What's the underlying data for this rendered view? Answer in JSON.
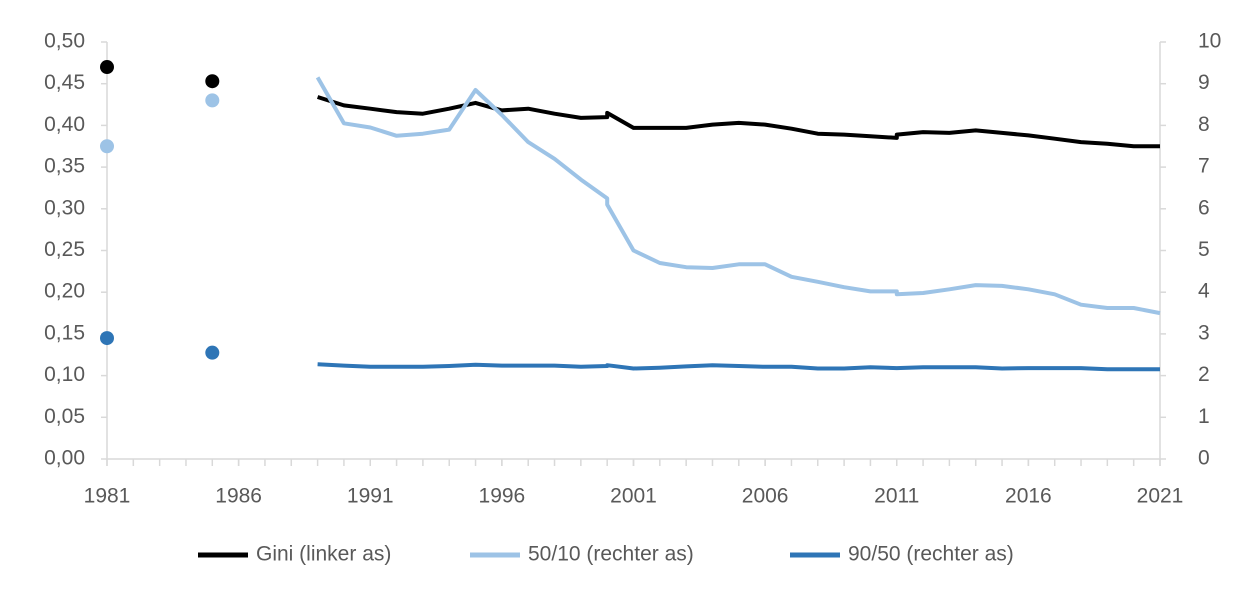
{
  "chart_data": {
    "type": "line",
    "x": [
      1981,
      1985,
      1989,
      1990,
      1991,
      1992,
      1993,
      1994,
      1995,
      1996,
      1997,
      1998,
      1999,
      2000,
      2000,
      2001,
      2002,
      2003,
      2004,
      2005,
      2006,
      2007,
      2008,
      2009,
      2010,
      2011,
      2011,
      2012,
      2013,
      2014,
      2015,
      2016,
      2017,
      2018,
      2019,
      2020,
      2021
    ],
    "series": [
      {
        "name": "Gini (linker as)",
        "color": "#000000",
        "axis": "y",
        "values": [
          0.47,
          0.453,
          0.434,
          0.424,
          0.42,
          0.416,
          0.414,
          0.42,
          0.427,
          0.418,
          0.42,
          0.414,
          0.409,
          0.41,
          0.415,
          0.397,
          0.397,
          0.397,
          0.401,
          0.403,
          0.401,
          0.396,
          0.39,
          0.389,
          0.387,
          0.385,
          0.389,
          0.392,
          0.391,
          0.394,
          0.391,
          0.388,
          0.384,
          0.38,
          0.378,
          0.375,
          0.375
        ]
      },
      {
        "name": "50/10 (rechter as)",
        "color": "#9dc3e6",
        "axis": "y2",
        "values": [
          7.5,
          8.6,
          9.15,
          8.05,
          7.95,
          7.75,
          7.8,
          7.9,
          8.85,
          8.25,
          7.6,
          7.2,
          6.7,
          6.25,
          6.1,
          5.0,
          4.7,
          4.6,
          4.58,
          4.67,
          4.67,
          4.37,
          4.25,
          4.12,
          4.02,
          4.02,
          3.95,
          3.98,
          4.07,
          4.17,
          4.15,
          4.07,
          3.95,
          3.7,
          3.62,
          3.62,
          3.5
        ]
      },
      {
        "name": "90/50 (rechter as)",
        "color": "#2e75b6",
        "axis": "y2",
        "values": [
          2.9,
          2.55,
          2.27,
          2.24,
          2.21,
          2.21,
          2.21,
          2.23,
          2.26,
          2.24,
          2.24,
          2.24,
          2.21,
          2.23,
          2.25,
          2.17,
          2.19,
          2.22,
          2.25,
          2.23,
          2.21,
          2.21,
          2.17,
          2.17,
          2.2,
          2.18,
          2.18,
          2.2,
          2.2,
          2.2,
          2.17,
          2.18,
          2.18,
          2.18,
          2.15,
          2.15,
          2.15
        ]
      }
    ],
    "xlim": [
      1981,
      2021
    ],
    "xticks": [
      1981,
      1986,
      1991,
      1996,
      2001,
      2006,
      2011,
      2016,
      2021
    ],
    "ylim": [
      0,
      0.5
    ],
    "yticks": [
      {
        "value": 0,
        "label": "0,00"
      },
      {
        "value": 0.05,
        "label": "0,05"
      },
      {
        "value": 0.1,
        "label": "0,10"
      },
      {
        "value": 0.15,
        "label": "0,15"
      },
      {
        "value": 0.2,
        "label": "0,20"
      },
      {
        "value": 0.25,
        "label": "0,25"
      },
      {
        "value": 0.3,
        "label": "0,30"
      },
      {
        "value": 0.35,
        "label": "0,35"
      },
      {
        "value": 0.4,
        "label": "0,40"
      },
      {
        "value": 0.45,
        "label": "0,45"
      },
      {
        "value": 0.5,
        "label": "0,50"
      }
    ],
    "y2lim": [
      0,
      10
    ],
    "y2ticks": [
      0,
      1,
      2,
      3,
      4,
      5,
      6,
      7,
      8,
      9,
      10
    ],
    "legend": "bottom"
  }
}
